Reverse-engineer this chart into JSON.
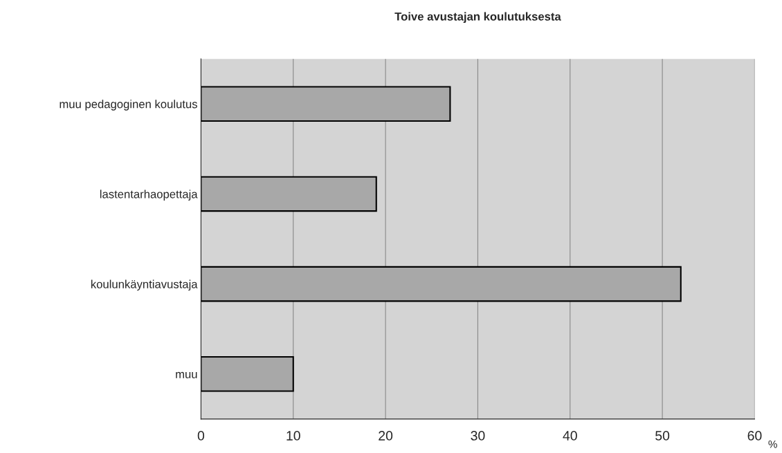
{
  "chart_data": {
    "type": "bar",
    "orientation": "horizontal",
    "title": "Toive avustajan koulutuksesta",
    "xlabel": "%",
    "categories": [
      "muu pedagoginen koulutus",
      "lastentarhaopettaja",
      "koulunkäyntiavustaja",
      "muu"
    ],
    "values": [
      27,
      19,
      52,
      10
    ],
    "color": "#a8a8a8",
    "xlim": [
      0,
      60
    ],
    "xticks": [
      0,
      10,
      20,
      30,
      40,
      50,
      60
    ],
    "grid": "x"
  }
}
